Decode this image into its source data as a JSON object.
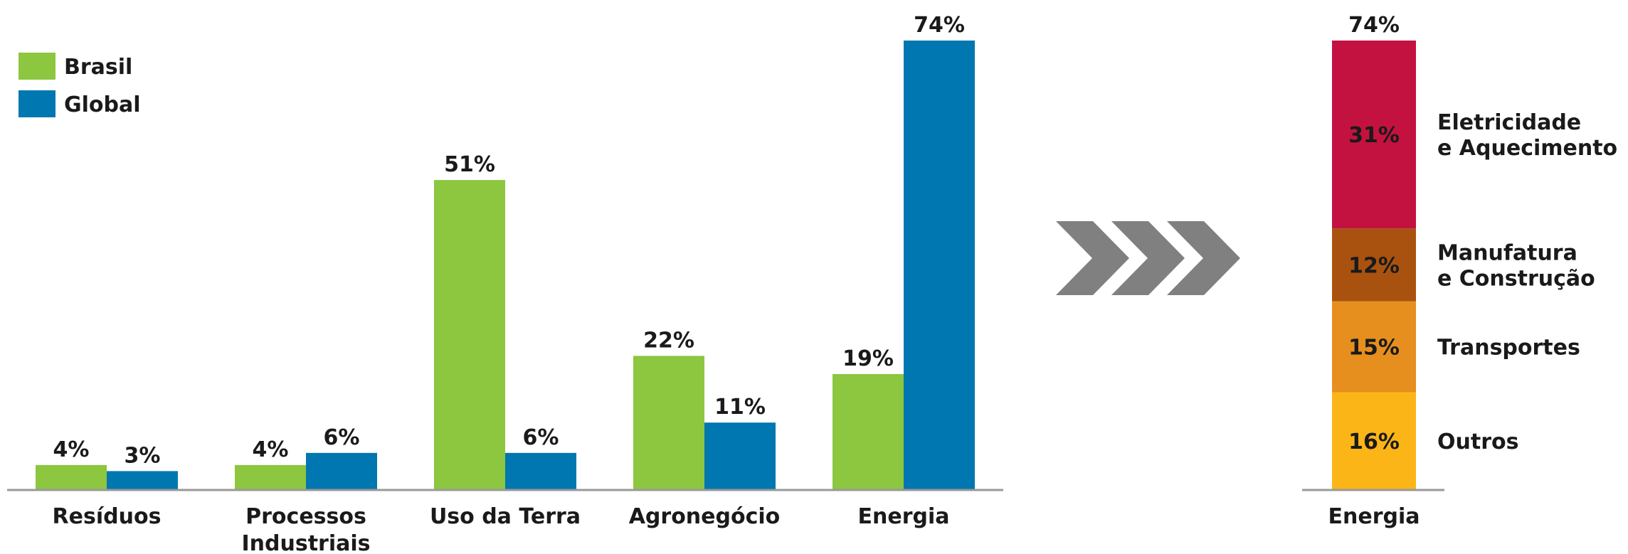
{
  "chart_data": [
    {
      "type": "bar",
      "categories": [
        "Resíduos",
        "Processos Industriais",
        "Uso da Terra",
        "Agronegócio",
        "Energia"
      ],
      "category_lines": [
        [
          "Resíduos"
        ],
        [
          "Processos",
          "Industriais"
        ],
        [
          "Uso da Terra"
        ],
        [
          "Agronegócio"
        ],
        [
          "Energia"
        ]
      ],
      "series": [
        {
          "name": "Brasil",
          "values": [
            4,
            4,
            51,
            22,
            19
          ],
          "labels": [
            "4%",
            "4%",
            "51%",
            "22%",
            "19%"
          ],
          "color": "#8dc63f"
        },
        {
          "name": "Global",
          "values": [
            3,
            6,
            6,
            11,
            74
          ],
          "labels": [
            "3%",
            "6%",
            "6%",
            "11%",
            "74%"
          ],
          "color": "#0077b0"
        }
      ],
      "legend": {
        "placement": "top-left",
        "items": [
          "Brasil",
          "Global"
        ]
      },
      "ylim": [
        0,
        74
      ],
      "grid": false,
      "title": "",
      "xlabel": "",
      "ylabel": ""
    },
    {
      "type": "stacked-bar",
      "categories": [
        "Energia"
      ],
      "total_label": "74%",
      "segments": [
        {
          "name": "Eletricidade e Aquecimento",
          "name_lines": [
            "Eletricidade",
            "e Aquecimento"
          ],
          "value": 31,
          "label": "31%",
          "color": "#c41240",
          "label_color": "#ffffff"
        },
        {
          "name": "Manufatura e Construção",
          "name_lines": [
            "Manufatura",
            "e Construção"
          ],
          "value": 12,
          "label": "12%",
          "color": "#a9520f",
          "label_color": "#ffffff"
        },
        {
          "name": "Transportes",
          "name_lines": [
            "Transportes"
          ],
          "value": 15,
          "label": "15%",
          "color": "#e68f1e",
          "label_color": "#1a1a1a"
        },
        {
          "name": "Outros",
          "name_lines": [
            "Outros"
          ],
          "value": 16,
          "label": "16%",
          "color": "#fbb516",
          "label_color": "#1a1a1a"
        }
      ],
      "ylim": [
        0,
        74
      ],
      "grid": false
    }
  ],
  "colors": {
    "text": "#1a1a1a",
    "axis": "#999999",
    "arrow": "#808080"
  },
  "icons": {
    "connector": "triple-chevron-arrow-icon"
  }
}
